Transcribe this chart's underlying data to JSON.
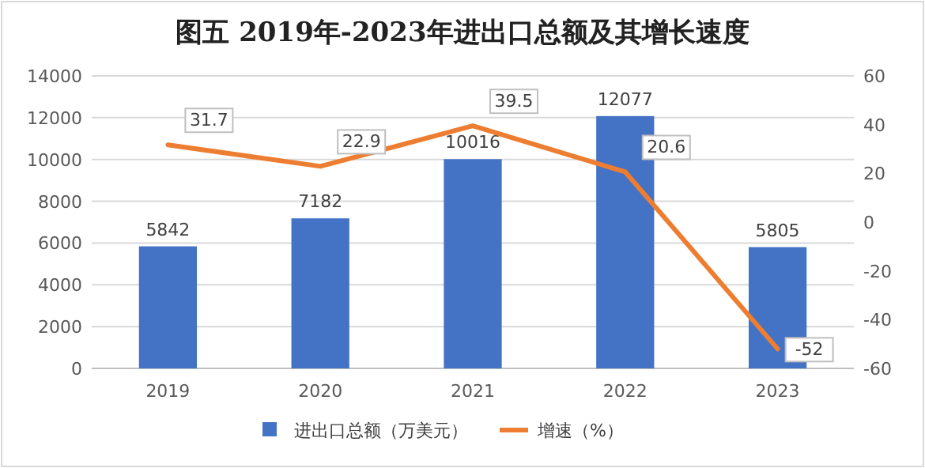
{
  "chart_data": {
    "type": "bar",
    "title": "图五 2019年-2023年进出口总额及其增长速度",
    "categories": [
      "2019",
      "2020",
      "2021",
      "2022",
      "2023"
    ],
    "series": [
      {
        "name": "进出口总额（万美元）",
        "color": "#4472c4",
        "values": [
          5842,
          7182,
          10016,
          12077,
          5805
        ]
      },
      {
        "name": "增速（%）",
        "type": "line",
        "axis": "y2",
        "color": "#ed7d31",
        "values": [
          31.7,
          22.9,
          39.5,
          20.6,
          -52
        ]
      }
    ],
    "ylim": [
      0,
      14000
    ],
    "yticks": [
      0,
      2000,
      4000,
      6000,
      8000,
      10000,
      12000,
      14000
    ],
    "y2lim": [
      -60,
      60
    ],
    "y2ticks": [
      -60,
      -40,
      -20,
      0,
      20,
      40,
      60
    ],
    "grid": "y",
    "legend": "bottom",
    "data_labels": true,
    "marker": "none",
    "line_style": "solid"
  }
}
